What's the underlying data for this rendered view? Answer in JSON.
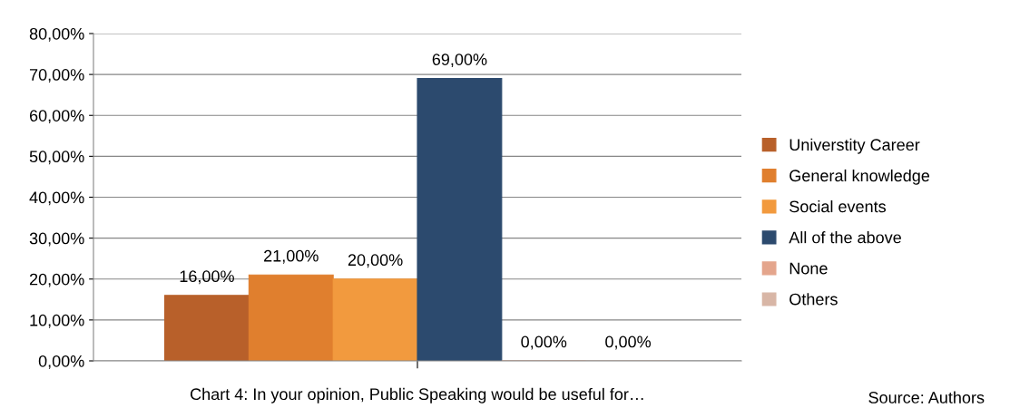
{
  "chart_data": {
    "type": "bar",
    "categories": [
      null
    ],
    "series": [
      {
        "name": "Universtity Career",
        "color": "#b8602a",
        "values": [
          16
        ],
        "value_labels": [
          "16,00%"
        ]
      },
      {
        "name": "General knowledge",
        "color": "#e07f2e",
        "values": [
          21
        ],
        "value_labels": [
          "21,00%"
        ]
      },
      {
        "name": "Social events",
        "color": "#f29a3e",
        "values": [
          20
        ],
        "value_labels": [
          "20,00%"
        ]
      },
      {
        "name": "All of the above",
        "color": "#2c4a6e",
        "values": [
          69
        ],
        "value_labels": [
          "69,00%"
        ]
      },
      {
        "name": "None",
        "color": "#e4a58c",
        "values": [
          0
        ],
        "value_labels": [
          "0,00%"
        ]
      },
      {
        "name": "Others",
        "color": "#d8b6a6",
        "values": [
          0
        ],
        "value_labels": [
          "0,00%"
        ]
      }
    ],
    "ylim": [
      0,
      80
    ],
    "yticks": [
      {
        "value": 0,
        "label": "0,00%"
      },
      {
        "value": 10,
        "label": "10,00%"
      },
      {
        "value": 20,
        "label": "20,00%"
      },
      {
        "value": 30,
        "label": "30,00%"
      },
      {
        "value": 40,
        "label": "40,00%"
      },
      {
        "value": 50,
        "label": "50,00%"
      },
      {
        "value": 60,
        "label": "60,00%"
      },
      {
        "value": 70,
        "label": "70,00%"
      },
      {
        "value": 80,
        "label": "80,00%"
      }
    ],
    "xlabel": "Chart 4: In your opinion, Public Speaking would be useful for…",
    "annotations": [
      "Source: Authors"
    ],
    "grid": "y",
    "legend": "right"
  }
}
